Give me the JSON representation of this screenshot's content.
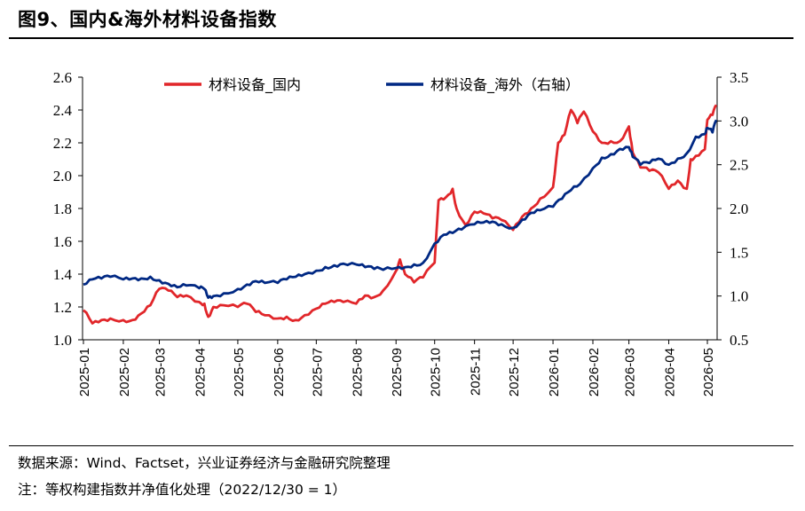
{
  "header": {
    "title": "图9、国内&海外材料设备指数"
  },
  "footer": {
    "source": "数据来源：Wind、Factset，兴业证券经济与金融研究院整理",
    "note": "注：等权构建指数并净值化处理（2022/12/30 = 1）"
  },
  "chart_data": {
    "type": "line",
    "xlabel": "",
    "ylabel_left": "",
    "ylabel_right": "",
    "x_ticks": [
      "2025-01",
      "2025-02",
      "2025-03",
      "2025-04",
      "2025-05",
      "2025-06",
      "2025-07",
      "2025-08",
      "2025-09",
      "2025-10",
      "2025-11",
      "2025-12",
      "2026-01",
      "2026-02",
      "2026-03",
      "2026-04",
      "2026-05"
    ],
    "y_left": {
      "min": 1.0,
      "max": 2.6,
      "ticks": [
        "1.0",
        "1.2",
        "1.4",
        "1.6",
        "1.8",
        "2.0",
        "2.2",
        "2.4",
        "2.6"
      ]
    },
    "y_right": {
      "min": 0.5,
      "max": 3.5,
      "ticks": [
        "0.5",
        "1.0",
        "1.5",
        "2.0",
        "2.5",
        "3.0",
        "3.5"
      ]
    },
    "legend_position": "top",
    "series": [
      {
        "name": "材料设备_国内",
        "axis": "left",
        "color": "#E1262A",
        "points": [
          [
            "2025-01-01",
            1.18
          ],
          [
            "2025-01-08",
            1.1
          ],
          [
            "2025-01-15",
            1.12
          ],
          [
            "2025-01-22",
            1.13
          ],
          [
            "2025-02-01",
            1.12
          ],
          [
            "2025-02-08",
            1.12
          ],
          [
            "2025-02-15",
            1.16
          ],
          [
            "2025-02-22",
            1.21
          ],
          [
            "2025-03-01",
            1.31
          ],
          [
            "2025-03-08",
            1.3
          ],
          [
            "2025-03-15",
            1.26
          ],
          [
            "2025-03-22",
            1.27
          ],
          [
            "2025-04-01",
            1.23
          ],
          [
            "2025-04-05",
            1.22
          ],
          [
            "2025-04-08",
            1.14
          ],
          [
            "2025-04-12",
            1.2
          ],
          [
            "2025-04-20",
            1.21
          ],
          [
            "2025-05-01",
            1.2
          ],
          [
            "2025-05-08",
            1.22
          ],
          [
            "2025-05-15",
            1.17
          ],
          [
            "2025-05-22",
            1.15
          ],
          [
            "2025-06-01",
            1.13
          ],
          [
            "2025-06-08",
            1.14
          ],
          [
            "2025-06-15",
            1.12
          ],
          [
            "2025-06-22",
            1.15
          ],
          [
            "2025-07-01",
            1.19
          ],
          [
            "2025-07-08",
            1.22
          ],
          [
            "2025-07-15",
            1.23
          ],
          [
            "2025-07-22",
            1.23
          ],
          [
            "2025-08-01",
            1.22
          ],
          [
            "2025-08-08",
            1.27
          ],
          [
            "2025-08-15",
            1.26
          ],
          [
            "2025-08-22",
            1.3
          ],
          [
            "2025-09-01",
            1.42
          ],
          [
            "2025-09-04",
            1.49
          ],
          [
            "2025-09-08",
            1.4
          ],
          [
            "2025-09-15",
            1.35
          ],
          [
            "2025-09-22",
            1.38
          ],
          [
            "2025-10-01",
            1.47
          ],
          [
            "2025-10-04",
            1.85
          ],
          [
            "2025-10-10",
            1.87
          ],
          [
            "2025-10-15",
            1.92
          ],
          [
            "2025-10-18",
            1.8
          ],
          [
            "2025-10-25",
            1.7
          ],
          [
            "2025-11-01",
            1.78
          ],
          [
            "2025-11-08",
            1.77
          ],
          [
            "2025-11-15",
            1.74
          ],
          [
            "2025-11-22",
            1.73
          ],
          [
            "2025-12-01",
            1.67
          ],
          [
            "2025-12-08",
            1.75
          ],
          [
            "2025-12-15",
            1.8
          ],
          [
            "2025-12-22",
            1.86
          ],
          [
            "2026-01-01",
            1.93
          ],
          [
            "2026-01-05",
            2.2
          ],
          [
            "2026-01-10",
            2.25
          ],
          [
            "2026-01-15",
            2.4
          ],
          [
            "2026-01-20",
            2.32
          ],
          [
            "2026-01-25",
            2.39
          ],
          [
            "2026-02-01",
            2.27
          ],
          [
            "2026-02-08",
            2.2
          ],
          [
            "2026-02-15",
            2.21
          ],
          [
            "2026-02-22",
            2.21
          ],
          [
            "2026-03-01",
            2.3
          ],
          [
            "2026-03-04",
            2.14
          ],
          [
            "2026-03-10",
            2.05
          ],
          [
            "2026-03-17",
            2.03
          ],
          [
            "2026-03-24",
            2.02
          ],
          [
            "2026-04-01",
            1.92
          ],
          [
            "2026-04-08",
            1.97
          ],
          [
            "2026-04-15",
            1.92
          ],
          [
            "2026-04-18",
            2.1
          ],
          [
            "2026-04-22",
            2.12
          ],
          [
            "2026-04-29",
            2.16
          ],
          [
            "2026-05-01",
            2.34
          ],
          [
            "2026-05-05",
            2.37
          ],
          [
            "2026-05-08",
            2.43
          ]
        ]
      },
      {
        "name": "材料设备_海外（右轴）",
        "axis": "right",
        "color": "#002883",
        "points": [
          [
            "2025-01-01",
            1.13
          ],
          [
            "2025-01-08",
            1.19
          ],
          [
            "2025-01-15",
            1.2
          ],
          [
            "2025-01-22",
            1.22
          ],
          [
            "2025-02-01",
            1.19
          ],
          [
            "2025-02-08",
            1.2
          ],
          [
            "2025-02-15",
            1.2
          ],
          [
            "2025-02-22",
            1.22
          ],
          [
            "2025-03-01",
            1.18
          ],
          [
            "2025-03-08",
            1.14
          ],
          [
            "2025-03-15",
            1.1
          ],
          [
            "2025-03-22",
            1.12
          ],
          [
            "2025-04-01",
            1.09
          ],
          [
            "2025-04-05",
            1.08
          ],
          [
            "2025-04-08",
            0.98
          ],
          [
            "2025-04-12",
            1.0
          ],
          [
            "2025-04-20",
            1.03
          ],
          [
            "2025-05-01",
            1.08
          ],
          [
            "2025-05-08",
            1.13
          ],
          [
            "2025-05-15",
            1.17
          ],
          [
            "2025-05-22",
            1.15
          ],
          [
            "2025-06-01",
            1.15
          ],
          [
            "2025-06-08",
            1.19
          ],
          [
            "2025-06-15",
            1.22
          ],
          [
            "2025-06-22",
            1.25
          ],
          [
            "2025-07-01",
            1.29
          ],
          [
            "2025-07-08",
            1.33
          ],
          [
            "2025-07-15",
            1.35
          ],
          [
            "2025-07-22",
            1.37
          ],
          [
            "2025-08-01",
            1.36
          ],
          [
            "2025-08-08",
            1.33
          ],
          [
            "2025-08-15",
            1.31
          ],
          [
            "2025-08-22",
            1.3
          ],
          [
            "2025-09-01",
            1.32
          ],
          [
            "2025-09-08",
            1.33
          ],
          [
            "2025-09-15",
            1.36
          ],
          [
            "2025-09-22",
            1.38
          ],
          [
            "2025-10-01",
            1.6
          ],
          [
            "2025-10-08",
            1.7
          ],
          [
            "2025-10-15",
            1.72
          ],
          [
            "2025-10-22",
            1.76
          ],
          [
            "2025-11-01",
            1.82
          ],
          [
            "2025-11-08",
            1.84
          ],
          [
            "2025-11-15",
            1.85
          ],
          [
            "2025-11-22",
            1.82
          ],
          [
            "2025-12-01",
            1.78
          ],
          [
            "2025-12-08",
            1.87
          ],
          [
            "2025-12-15",
            1.95
          ],
          [
            "2025-12-22",
            1.98
          ],
          [
            "2026-01-01",
            2.02
          ],
          [
            "2026-01-08",
            2.11
          ],
          [
            "2026-01-15",
            2.21
          ],
          [
            "2026-01-22",
            2.28
          ],
          [
            "2026-02-01",
            2.46
          ],
          [
            "2026-02-08",
            2.58
          ],
          [
            "2026-02-15",
            2.62
          ],
          [
            "2026-02-22",
            2.68
          ],
          [
            "2026-03-01",
            2.7
          ],
          [
            "2026-03-04",
            2.59
          ],
          [
            "2026-03-10",
            2.5
          ],
          [
            "2026-03-17",
            2.52
          ],
          [
            "2026-03-24",
            2.57
          ],
          [
            "2026-04-01",
            2.5
          ],
          [
            "2026-04-08",
            2.57
          ],
          [
            "2026-04-15",
            2.63
          ],
          [
            "2026-04-22",
            2.82
          ],
          [
            "2026-04-29",
            2.85
          ],
          [
            "2026-05-01",
            2.92
          ],
          [
            "2026-05-05",
            2.87
          ],
          [
            "2026-05-08",
            3.01
          ]
        ]
      }
    ]
  }
}
